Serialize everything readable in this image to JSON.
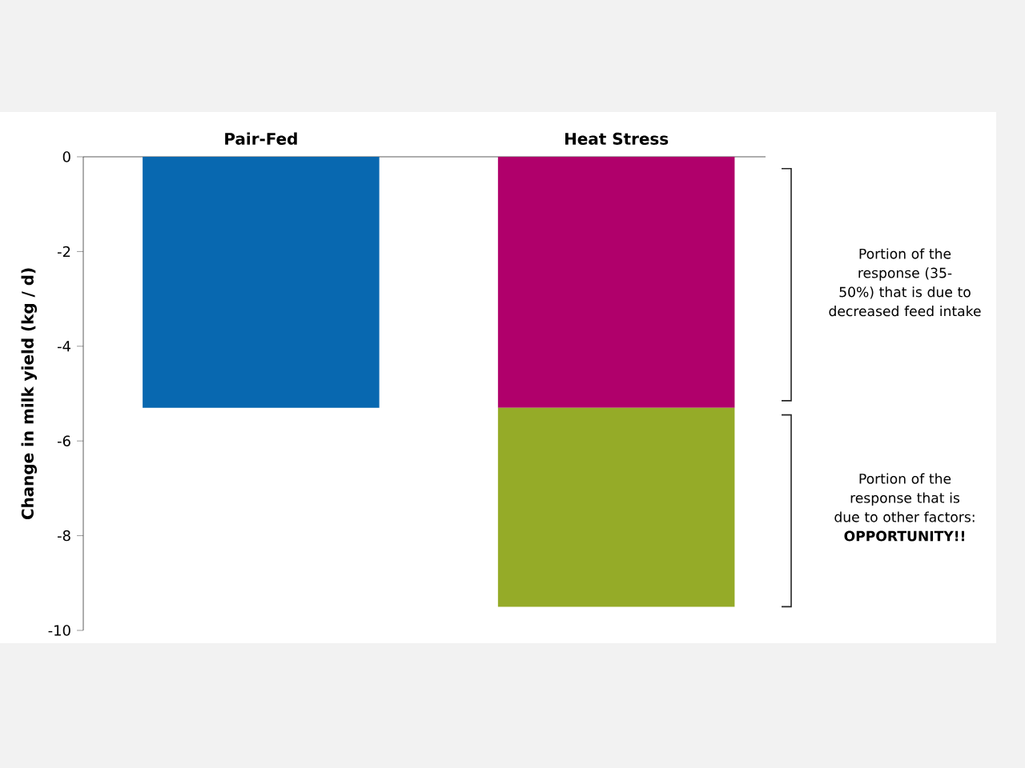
{
  "chart_data": {
    "type": "bar",
    "stacked": true,
    "categories": [
      "Pair-Fed",
      "Heat Stress"
    ],
    "ylabel": "Change in milk yield (kg / d)",
    "series": [
      {
        "colors": [
          "#0868b0",
          "#b0006b"
        ],
        "values": [
          -5.3,
          -5.3
        ]
      },
      {
        "color": "#95ab28",
        "values": [
          null,
          -4.2
        ]
      }
    ],
    "ylim": [
      -10,
      0
    ],
    "yticks": [
      -10,
      -8,
      -6,
      -4,
      -2,
      0
    ],
    "annotations": [
      "Portion of the response (35-50%) that is due to decreased feed intake",
      "Portion of the response that is due to other factors: **OPPORTUNITY!!**"
    ]
  }
}
